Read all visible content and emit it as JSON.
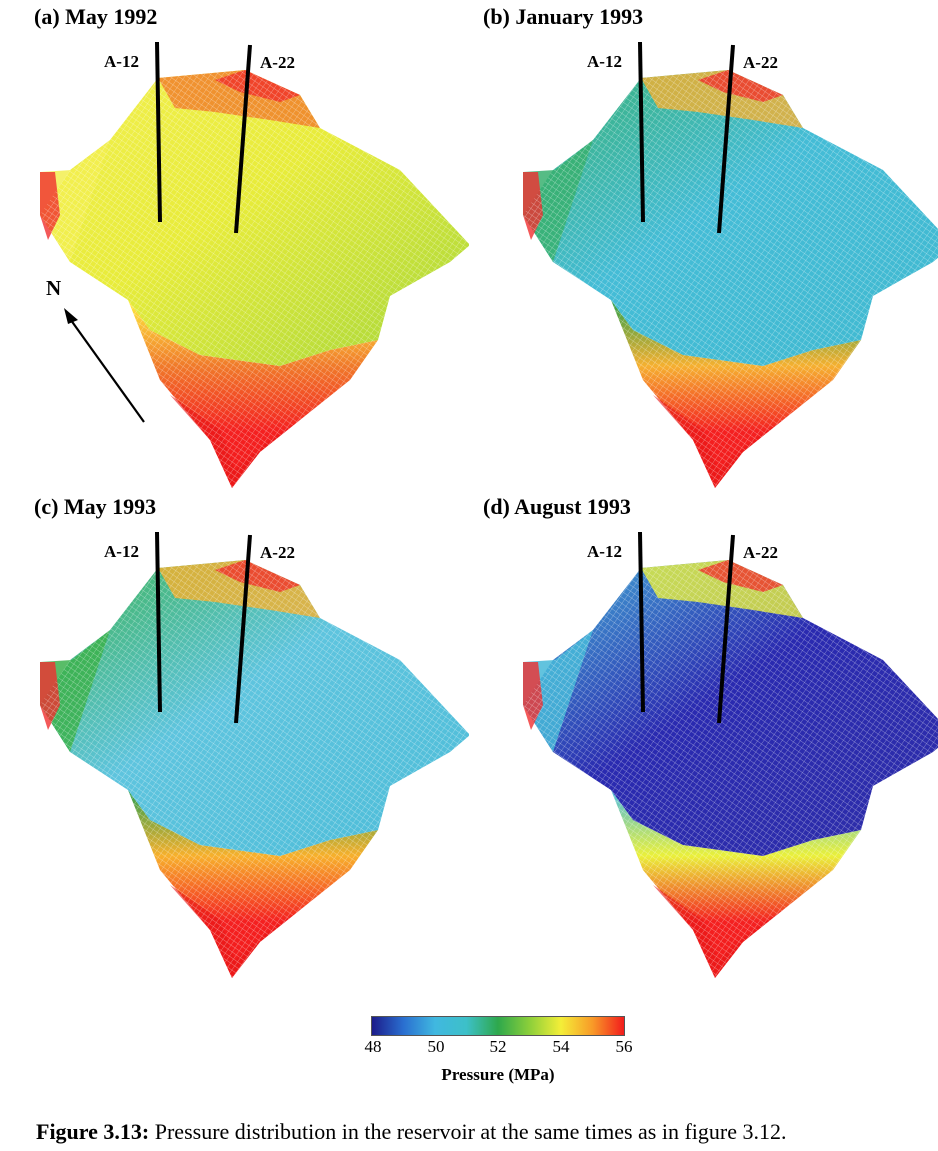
{
  "panels": [
    {
      "id": "a",
      "title": "(a) May 1992",
      "wells": [
        "A-12",
        "A-22"
      ],
      "colors": {
        "top": "#e8ec3a",
        "right": "#a4d63a",
        "left": "#f2ef50",
        "south": "#ffee40",
        "rim": "#f07a2a"
      }
    },
    {
      "id": "b",
      "title": "(b) January 1993",
      "wells": [
        "A-12",
        "A-22"
      ],
      "colors": {
        "top": "#44bcd6",
        "right": "#40b9d0",
        "left": "#38b070",
        "south": "#2fa04a",
        "rim": "#f5b030"
      }
    },
    {
      "id": "c",
      "title": "(c) May 1993",
      "wells": [
        "A-12",
        "A-22"
      ],
      "colors": {
        "top": "#5ec4de",
        "right": "#4cbcd8",
        "left": "#3cb24e",
        "south": "#2ea050",
        "rim": "#f7b02c"
      }
    },
    {
      "id": "d",
      "title": "(d) August 1993",
      "wells": [
        "A-12",
        "A-22"
      ],
      "colors": {
        "top": "#2a2ab0",
        "right": "#2e2ea8",
        "left": "#46b8d8",
        "south": "#4dbde0",
        "rim": "#eaf03a"
      }
    }
  ],
  "north_arrow": {
    "label": "N"
  },
  "colorbar": {
    "ticks": [
      "48",
      "50",
      "52",
      "54",
      "56"
    ],
    "title": "Pressure (MPa)",
    "range": [
      48,
      56
    ],
    "colors": [
      "#1c1c8a",
      "#2a6fd0",
      "#40b8e0",
      "#3dc0c8",
      "#2ea84c",
      "#8ccf3a",
      "#f4ee38",
      "#f89a28",
      "#f21c1c"
    ]
  },
  "caption": {
    "label": "Figure 3.13:",
    "text": " Pressure distribution in the reservoir at the same times as in figure 3.12."
  }
}
